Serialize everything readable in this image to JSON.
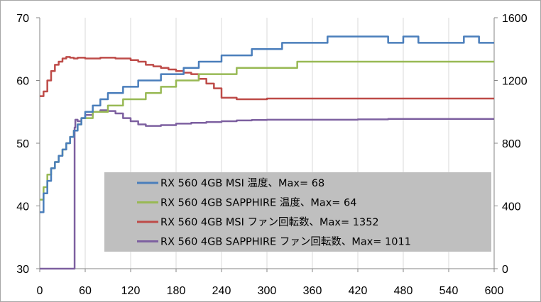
{
  "chart_data": {
    "type": "line",
    "title": "",
    "xlabel": "",
    "ylabel": "",
    "y2label": "",
    "xlim": [
      0,
      600
    ],
    "ylim": [
      30,
      70
    ],
    "y2lim": [
      0,
      1600
    ],
    "x_ticks": [
      0,
      60,
      120,
      180,
      240,
      300,
      360,
      420,
      480,
      540,
      600
    ],
    "y_ticks": [
      30,
      40,
      50,
      60,
      70
    ],
    "y2_ticks": [
      0,
      400,
      800,
      1200,
      1600
    ],
    "grid": "vertical",
    "legend_position": "center-right",
    "series": [
      {
        "name": "RX 560 4GB MSI 温度、Max= 68",
        "axis": "left",
        "color": "#4a7ebb",
        "x": [
          0,
          5,
          10,
          15,
          20,
          25,
          30,
          35,
          40,
          45,
          50,
          55,
          60,
          70,
          80,
          90,
          100,
          110,
          120,
          130,
          140,
          150,
          160,
          170,
          180,
          190,
          200,
          210,
          220,
          230,
          240,
          250,
          260,
          270,
          280,
          290,
          300,
          320,
          340,
          360,
          380,
          400,
          420,
          440,
          460,
          480,
          500,
          520,
          540,
          560,
          580,
          600
        ],
        "values": [
          39,
          42,
          44,
          46,
          47,
          48,
          49,
          50,
          51,
          52,
          53,
          54,
          55,
          56,
          57,
          58,
          58,
          59,
          59,
          60,
          60,
          60,
          61,
          61,
          61,
          62,
          62,
          63,
          63,
          63,
          64,
          64,
          64,
          64,
          65,
          65,
          65,
          66,
          66,
          66,
          67,
          67,
          67,
          67,
          66,
          67,
          66,
          66,
          66,
          67,
          66,
          66
        ]
      },
      {
        "name": "RX 560 4GB SAPPHIRE 温度、Max= 64",
        "axis": "left",
        "color": "#98b954",
        "x": [
          0,
          5,
          10,
          15,
          20,
          25,
          30,
          35,
          40,
          45,
          50,
          55,
          60,
          70,
          80,
          90,
          100,
          110,
          120,
          130,
          140,
          150,
          160,
          170,
          180,
          190,
          200,
          210,
          220,
          230,
          240,
          250,
          260,
          270,
          280,
          290,
          300,
          320,
          340,
          360,
          380,
          400,
          420,
          440,
          460,
          480,
          500,
          520,
          540,
          560,
          580,
          600
        ],
        "values": [
          41,
          43,
          45,
          46,
          47,
          48,
          49,
          50,
          51,
          52,
          53,
          54,
          54,
          55,
          55,
          56,
          56,
          57,
          57,
          57,
          58,
          58,
          59,
          59,
          60,
          60,
          60,
          61,
          61,
          61,
          61,
          61,
          62,
          62,
          62,
          62,
          62,
          62,
          63,
          63,
          63,
          63,
          63,
          63,
          63,
          63,
          63,
          63,
          63,
          63,
          63,
          63
        ]
      },
      {
        "name": "RX 560 4GB MSI ファン回転数、Max= 1352",
        "axis": "right",
        "color": "#be4b48",
        "x": [
          0,
          5,
          10,
          15,
          20,
          25,
          30,
          35,
          40,
          45,
          50,
          60,
          80,
          100,
          120,
          130,
          140,
          150,
          160,
          170,
          180,
          190,
          200,
          210,
          220,
          230,
          240,
          260,
          280,
          300,
          320,
          340,
          360,
          380,
          400,
          420,
          440,
          460,
          480,
          500,
          520,
          540,
          560,
          580,
          600
        ],
        "values": [
          1100,
          1130,
          1200,
          1260,
          1300,
          1320,
          1340,
          1350,
          1345,
          1340,
          1345,
          1340,
          1345,
          1340,
          1330,
          1320,
          1300,
          1290,
          1280,
          1270,
          1260,
          1250,
          1240,
          1210,
          1180,
          1150,
          1090,
          1080,
          1080,
          1085,
          1085,
          1085,
          1085,
          1085,
          1085,
          1085,
          1085,
          1085,
          1085,
          1085,
          1085,
          1085,
          1085,
          1085,
          1085
        ]
      },
      {
        "name": "RX 560 4GB SAPPHIRE ファン回転数、Max= 1011",
        "axis": "right",
        "color": "#7d60a0",
        "x": [
          0,
          10,
          20,
          30,
          40,
          45,
          46,
          47,
          50,
          55,
          60,
          70,
          80,
          90,
          100,
          110,
          120,
          130,
          140,
          150,
          160,
          180,
          200,
          220,
          240,
          260,
          280,
          300,
          340,
          380,
          420,
          460,
          500,
          540,
          580,
          600
        ],
        "values": [
          0,
          0,
          0,
          0,
          0,
          0,
          900,
          950,
          940,
          960,
          980,
          1000,
          1010,
          1005,
          990,
          960,
          940,
          920,
          910,
          910,
          915,
          925,
          930,
          935,
          940,
          945,
          948,
          950,
          950,
          950,
          952,
          955,
          955,
          955,
          955,
          955
        ]
      }
    ]
  }
}
